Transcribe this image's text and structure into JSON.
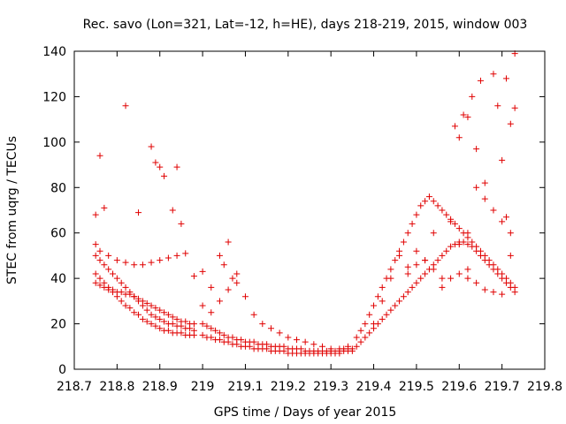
{
  "chart_data": {
    "type": "scatter",
    "title": "Rec. savo (Lon=321, Lat=-12, h=HE), days 218-219, 2015, window 003",
    "xlabel": "GPS time / Days of year 2015",
    "ylabel": "STEC from uqrg / TECUs",
    "xlim": [
      218.7,
      219.8
    ],
    "ylim": [
      0,
      140
    ],
    "xticks": [
      218.7,
      218.8,
      218.9,
      219,
      219.1,
      219.2,
      219.3,
      219.4,
      219.5,
      219.6,
      219.7,
      219.8
    ],
    "xtick_labels": [
      "218.7",
      "218.8",
      "218.9",
      "219",
      "219.1",
      "219.2",
      "219.3",
      "219.4",
      "219.5",
      "219.6",
      "219.7",
      "219.8"
    ],
    "yticks": [
      0,
      20,
      40,
      60,
      80,
      100,
      120,
      140
    ],
    "ytick_labels": [
      "0",
      "20",
      "40",
      "60",
      "80",
      "100",
      "120",
      "140"
    ],
    "grid": false,
    "legend": "none",
    "marker": "+",
    "color": "#e00000",
    "series": [
      {
        "x": [
          218.75,
          218.76,
          218.77,
          218.78,
          218.79,
          218.8,
          218.81,
          218.82,
          218.83,
          218.84,
          218.85,
          218.86,
          218.87,
          218.88,
          218.89,
          218.9,
          218.91,
          218.92,
          218.93,
          218.94,
          218.95,
          218.96,
          218.97,
          218.98,
          218.75,
          218.76,
          218.77,
          218.78,
          218.79,
          218.8,
          218.81,
          218.82,
          218.83,
          218.84,
          218.85,
          218.86,
          218.87,
          218.88,
          218.89,
          218.9,
          218.91,
          218.92,
          218.93,
          218.94,
          218.95,
          218.96,
          218.97,
          218.98,
          218.75,
          218.76,
          218.77,
          218.78,
          218.79,
          218.8,
          218.81,
          218.82,
          218.83,
          218.84,
          218.85,
          218.86,
          218.87,
          218.88,
          218.89,
          218.9,
          218.91,
          218.92,
          218.93,
          218.94,
          218.95,
          218.96,
          218.97,
          218.98,
          218.75,
          218.76,
          218.78,
          218.8,
          218.82,
          218.84,
          218.86,
          218.88,
          218.9,
          218.92,
          218.94,
          218.96,
          218.98,
          218.75,
          218.76,
          218.77,
          218.82,
          218.85,
          218.88,
          218.89,
          218.9,
          218.91,
          218.93,
          218.94,
          218.95
        ],
        "y": [
          42,
          40,
          38,
          36,
          34,
          32,
          30,
          28,
          27,
          25,
          24,
          22,
          21,
          20,
          19,
          18,
          17,
          17,
          16,
          16,
          16,
          15,
          15,
          15,
          50,
          48,
          46,
          44,
          42,
          40,
          38,
          36,
          34,
          32,
          30,
          28,
          26,
          24,
          23,
          22,
          21,
          20,
          20,
          19,
          19,
          18,
          18,
          17,
          38,
          37,
          36,
          35,
          35,
          34,
          34,
          33,
          33,
          32,
          31,
          30,
          29,
          28,
          27,
          26,
          25,
          24,
          23,
          22,
          21,
          21,
          20,
          20,
          55,
          52,
          50,
          48,
          47,
          46,
          46,
          47,
          48,
          49,
          50,
          51,
          41,
          68,
          94,
          71,
          116,
          69,
          98,
          91,
          89,
          85,
          70,
          89,
          64
        ]
      },
      {
        "x": [
          219.0,
          219.01,
          219.02,
          219.03,
          219.04,
          219.05,
          219.06,
          219.07,
          219.08,
          219.09,
          219.1,
          219.11,
          219.12,
          219.13,
          219.14,
          219.15,
          219.16,
          219.17,
          219.18,
          219.19,
          219.2,
          219.21,
          219.22,
          219.23,
          219.24,
          219.25,
          219.26,
          219.27,
          219.28,
          219.29,
          219.3,
          219.31,
          219.32,
          219.33,
          219.34,
          219.35,
          219.0,
          219.01,
          219.02,
          219.03,
          219.04,
          219.05,
          219.06,
          219.07,
          219.08,
          219.09,
          219.1,
          219.11,
          219.12,
          219.13,
          219.14,
          219.15,
          219.16,
          219.17,
          219.18,
          219.19,
          219.2,
          219.21,
          219.22,
          219.23,
          219.24,
          219.25,
          219.26,
          219.27,
          219.28,
          219.29,
          219.3,
          219.31,
          219.32,
          219.33,
          219.34,
          219.35,
          219.0,
          219.02,
          219.04,
          219.06,
          219.08,
          219.1,
          219.12,
          219.14,
          219.16,
          219.18,
          219.2,
          219.22,
          219.24,
          219.26,
          219.28,
          219.3,
          219.32,
          219.34,
          219.0,
          219.02,
          219.04,
          219.05,
          219.06,
          219.07,
          219.08
        ],
        "y": [
          15,
          14,
          14,
          13,
          13,
          12,
          12,
          11,
          11,
          10,
          10,
          10,
          9,
          9,
          9,
          9,
          8,
          8,
          8,
          8,
          7,
          7,
          7,
          7,
          7,
          7,
          7,
          7,
          7,
          7,
          7,
          7,
          7,
          8,
          8,
          8,
          20,
          19,
          18,
          17,
          16,
          15,
          14,
          14,
          13,
          13,
          12,
          12,
          12,
          11,
          11,
          11,
          10,
          10,
          10,
          10,
          9,
          9,
          9,
          9,
          8,
          8,
          8,
          8,
          8,
          8,
          8,
          8,
          8,
          9,
          9,
          9,
          28,
          25,
          30,
          35,
          38,
          32,
          24,
          20,
          18,
          16,
          14,
          13,
          12,
          11,
          10,
          9,
          9,
          10,
          43,
          36,
          50,
          46,
          56,
          40,
          42
        ]
      },
      {
        "x": [
          219.36,
          219.37,
          219.38,
          219.39,
          219.4,
          219.41,
          219.42,
          219.43,
          219.44,
          219.45,
          219.46,
          219.47,
          219.48,
          219.49,
          219.5,
          219.51,
          219.52,
          219.53,
          219.54,
          219.55,
          219.56,
          219.57,
          219.58,
          219.59,
          219.6,
          219.61,
          219.62,
          219.63,
          219.64,
          219.65,
          219.66,
          219.67,
          219.68,
          219.69,
          219.7,
          219.71,
          219.72,
          219.73,
          219.36,
          219.37,
          219.38,
          219.39,
          219.4,
          219.41,
          219.42,
          219.43,
          219.44,
          219.45,
          219.46,
          219.47,
          219.48,
          219.49,
          219.5,
          219.51,
          219.52,
          219.53,
          219.54,
          219.55,
          219.56,
          219.57,
          219.58,
          219.59,
          219.6,
          219.61,
          219.62,
          219.63,
          219.64,
          219.65,
          219.66,
          219.67,
          219.68,
          219.69,
          219.7,
          219.71,
          219.72,
          219.73,
          219.4,
          219.42,
          219.44,
          219.46,
          219.48,
          219.5,
          219.52,
          219.54,
          219.56,
          219.58,
          219.6,
          219.62,
          219.64,
          219.66,
          219.68,
          219.7,
          219.72,
          219.48,
          219.5,
          219.52,
          219.54,
          219.56,
          219.58,
          219.6,
          219.62,
          219.64,
          219.66,
          219.68,
          219.7,
          219.72,
          219.59,
          219.6,
          219.61,
          219.62,
          219.63,
          219.64,
          219.65,
          219.68,
          219.69,
          219.7,
          219.71,
          219.72,
          219.73,
          219.73,
          219.71,
          219.66,
          219.62
        ],
        "y": [
          10,
          12,
          14,
          16,
          18,
          20,
          22,
          24,
          26,
          28,
          30,
          32,
          34,
          36,
          38,
          40,
          42,
          44,
          46,
          48,
          50,
          52,
          54,
          55,
          56,
          56,
          55,
          54,
          52,
          50,
          48,
          46,
          44,
          42,
          40,
          38,
          36,
          34,
          14,
          17,
          20,
          24,
          28,
          32,
          36,
          40,
          44,
          48,
          52,
          56,
          60,
          64,
          68,
          72,
          74,
          76,
          74,
          72,
          70,
          68,
          66,
          64,
          62,
          60,
          58,
          56,
          54,
          52,
          50,
          48,
          46,
          44,
          42,
          40,
          38,
          36,
          20,
          30,
          40,
          50,
          45,
          52,
          48,
          60,
          40,
          65,
          55,
          60,
          80,
          75,
          70,
          65,
          60,
          42,
          46,
          48,
          44,
          36,
          40,
          42,
          44,
          38,
          35,
          34,
          33,
          50,
          107,
          102,
          112,
          111,
          120,
          97,
          127,
          130,
          116,
          92,
          128,
          108,
          139,
          115,
          67,
          82,
          40
        ]
      }
    ]
  }
}
